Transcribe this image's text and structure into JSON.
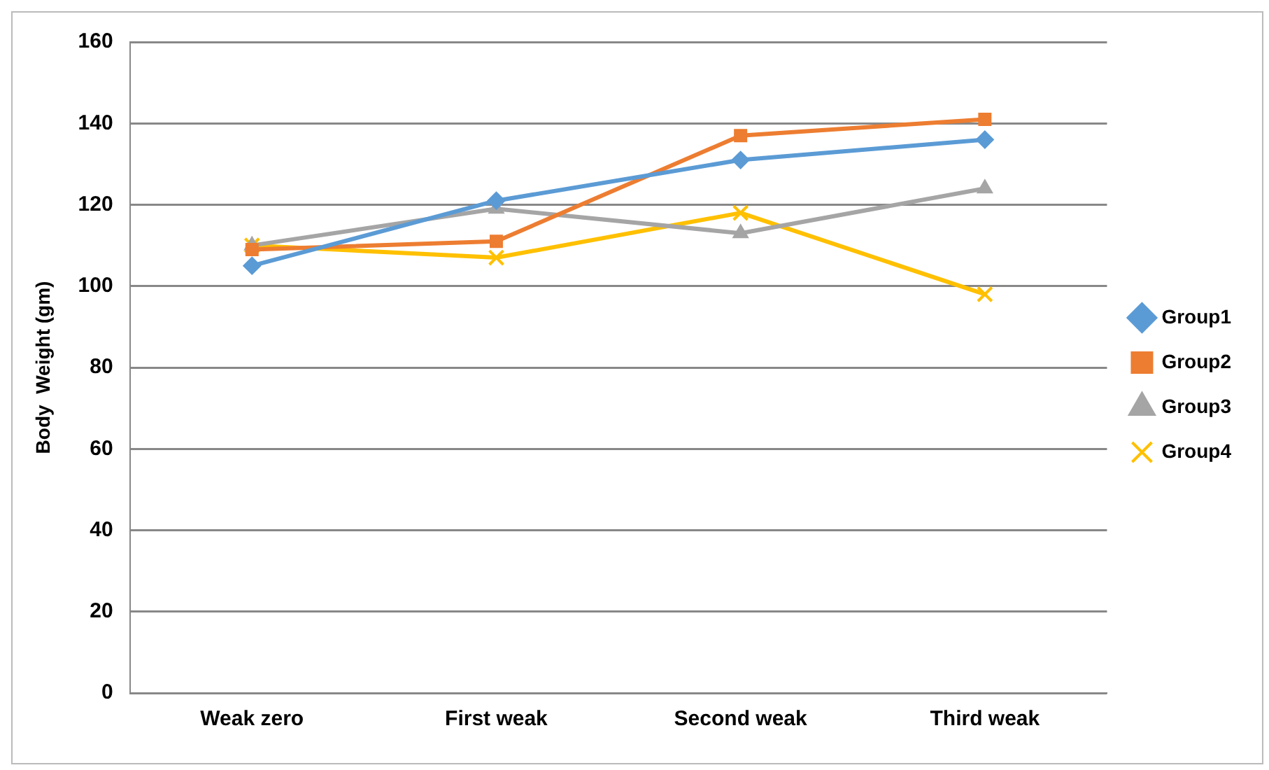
{
  "chart_data": {
    "type": "line",
    "ylabel": "Body  Weight (gm)",
    "categories": [
      "Weak zero",
      "First weak",
      "Second weak",
      "Third weak"
    ],
    "series": [
      {
        "name": "Group1",
        "color": "#5b9bd5",
        "marker": "diamond",
        "values": [
          105,
          121,
          131,
          136
        ]
      },
      {
        "name": "Group2",
        "color": "#ed7d31",
        "marker": "square",
        "values": [
          109,
          111,
          137,
          141
        ]
      },
      {
        "name": "Group3",
        "color": "#a5a5a5",
        "marker": "triangle",
        "values": [
          110,
          119,
          113,
          124
        ]
      },
      {
        "name": "Group4",
        "color": "#ffc000",
        "marker": "cross",
        "values": [
          110,
          107,
          118,
          98
        ]
      }
    ],
    "ylim": [
      0,
      160
    ],
    "yticks": [
      0,
      20,
      40,
      60,
      80,
      100,
      120,
      140,
      160
    ],
    "grid": "y",
    "legend": "right"
  }
}
